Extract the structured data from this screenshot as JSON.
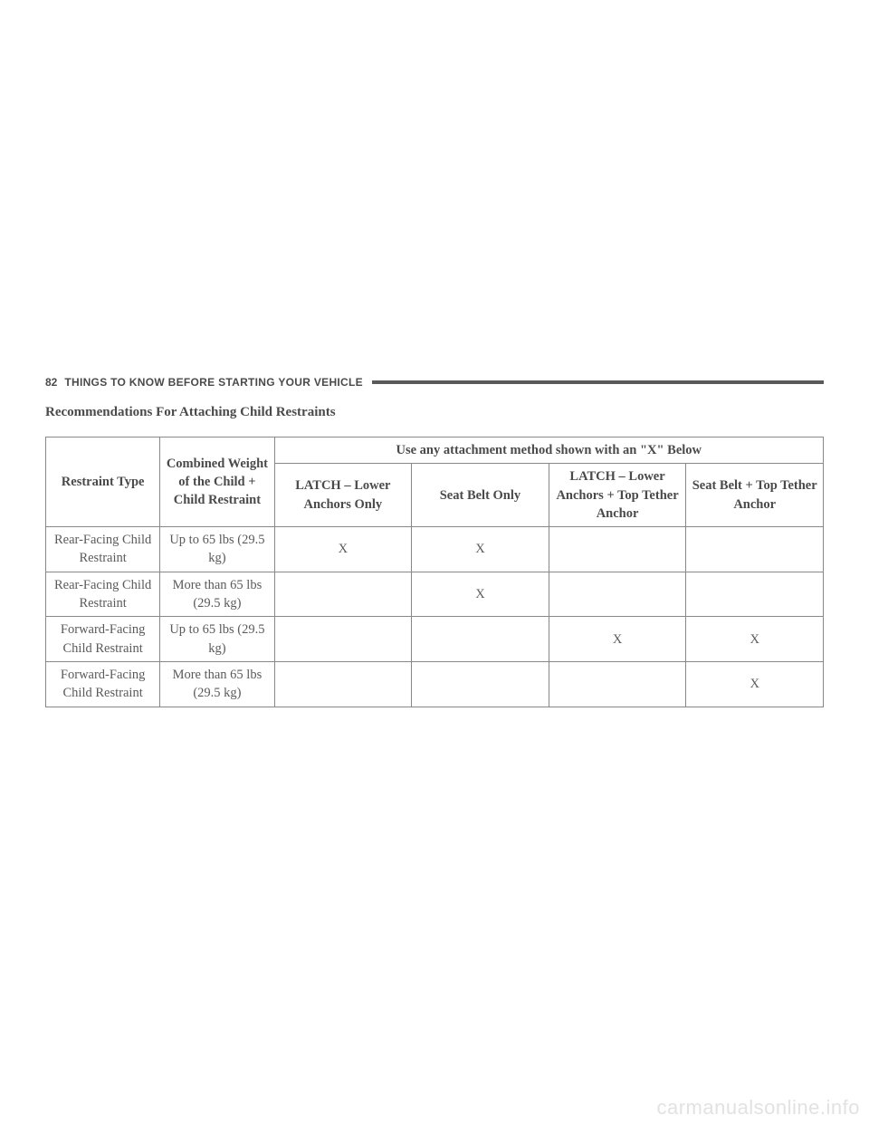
{
  "header": {
    "page_number": "82",
    "section_title": "THINGS TO KNOW BEFORE STARTING YOUR VEHICLE"
  },
  "subtitle": "Recommendations For Attaching Child Restraints",
  "table": {
    "headers": {
      "restraint_type": "Restraint Type",
      "combined_weight": "Combined Weight of the Child + Child Restraint",
      "method_group": "Use any attachment method shown with an \"X\" Below",
      "method_1": "LATCH – Lower Anchors Only",
      "method_2": "Seat Belt Only",
      "method_3": "LATCH – Lower Anchors + Top Tether Anchor",
      "method_4": "Seat Belt + Top Tether Anchor"
    },
    "rows": [
      {
        "restraint_type": "Rear-Facing Child Restraint",
        "weight": "Up to 65 lbs (29.5 kg)",
        "m1": "X",
        "m2": "X",
        "m3": "",
        "m4": ""
      },
      {
        "restraint_type": "Rear-Facing Child Restraint",
        "weight": "More than 65 lbs (29.5 kg)",
        "m1": "",
        "m2": "X",
        "m3": "",
        "m4": ""
      },
      {
        "restraint_type": "Forward-Facing Child Restraint",
        "weight": "Up to 65 lbs (29.5 kg)",
        "m1": "",
        "m2": "",
        "m3": "X",
        "m4": "X"
      },
      {
        "restraint_type": "Forward-Facing Child Restraint",
        "weight": "More than 65 lbs (29.5 kg)",
        "m1": "",
        "m2": "",
        "m3": "",
        "m4": "X"
      }
    ]
  },
  "watermark": "carmanualsonline.info",
  "styling": {
    "background_color": "#ffffff",
    "text_color": "#595959",
    "border_color": "#888888",
    "watermark_color": "#e2e2e2",
    "header_rule_color": "#5a5a5a"
  }
}
